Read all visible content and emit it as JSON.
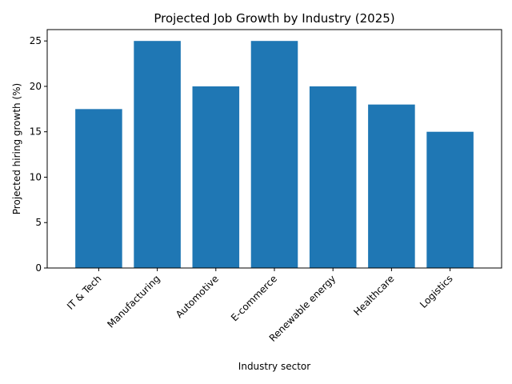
{
  "chart_data": {
    "type": "bar",
    "title": "Projected Job Growth by Industry (2025)",
    "xlabel": "Industry sector",
    "ylabel": "Projected hiring growth (%)",
    "categories": [
      "IT & Tech",
      "Manufacturing",
      "Automotive",
      "E-commerce",
      "Renewable energy",
      "Healthcare",
      "Logistics"
    ],
    "values": [
      17.5,
      25,
      20,
      25,
      20,
      18,
      15
    ],
    "ylim": [
      0,
      26.25
    ],
    "yticks": [
      0,
      5,
      10,
      15,
      20,
      25
    ],
    "bar_color": "#1f77b4",
    "grid": false,
    "legend": "none"
  }
}
